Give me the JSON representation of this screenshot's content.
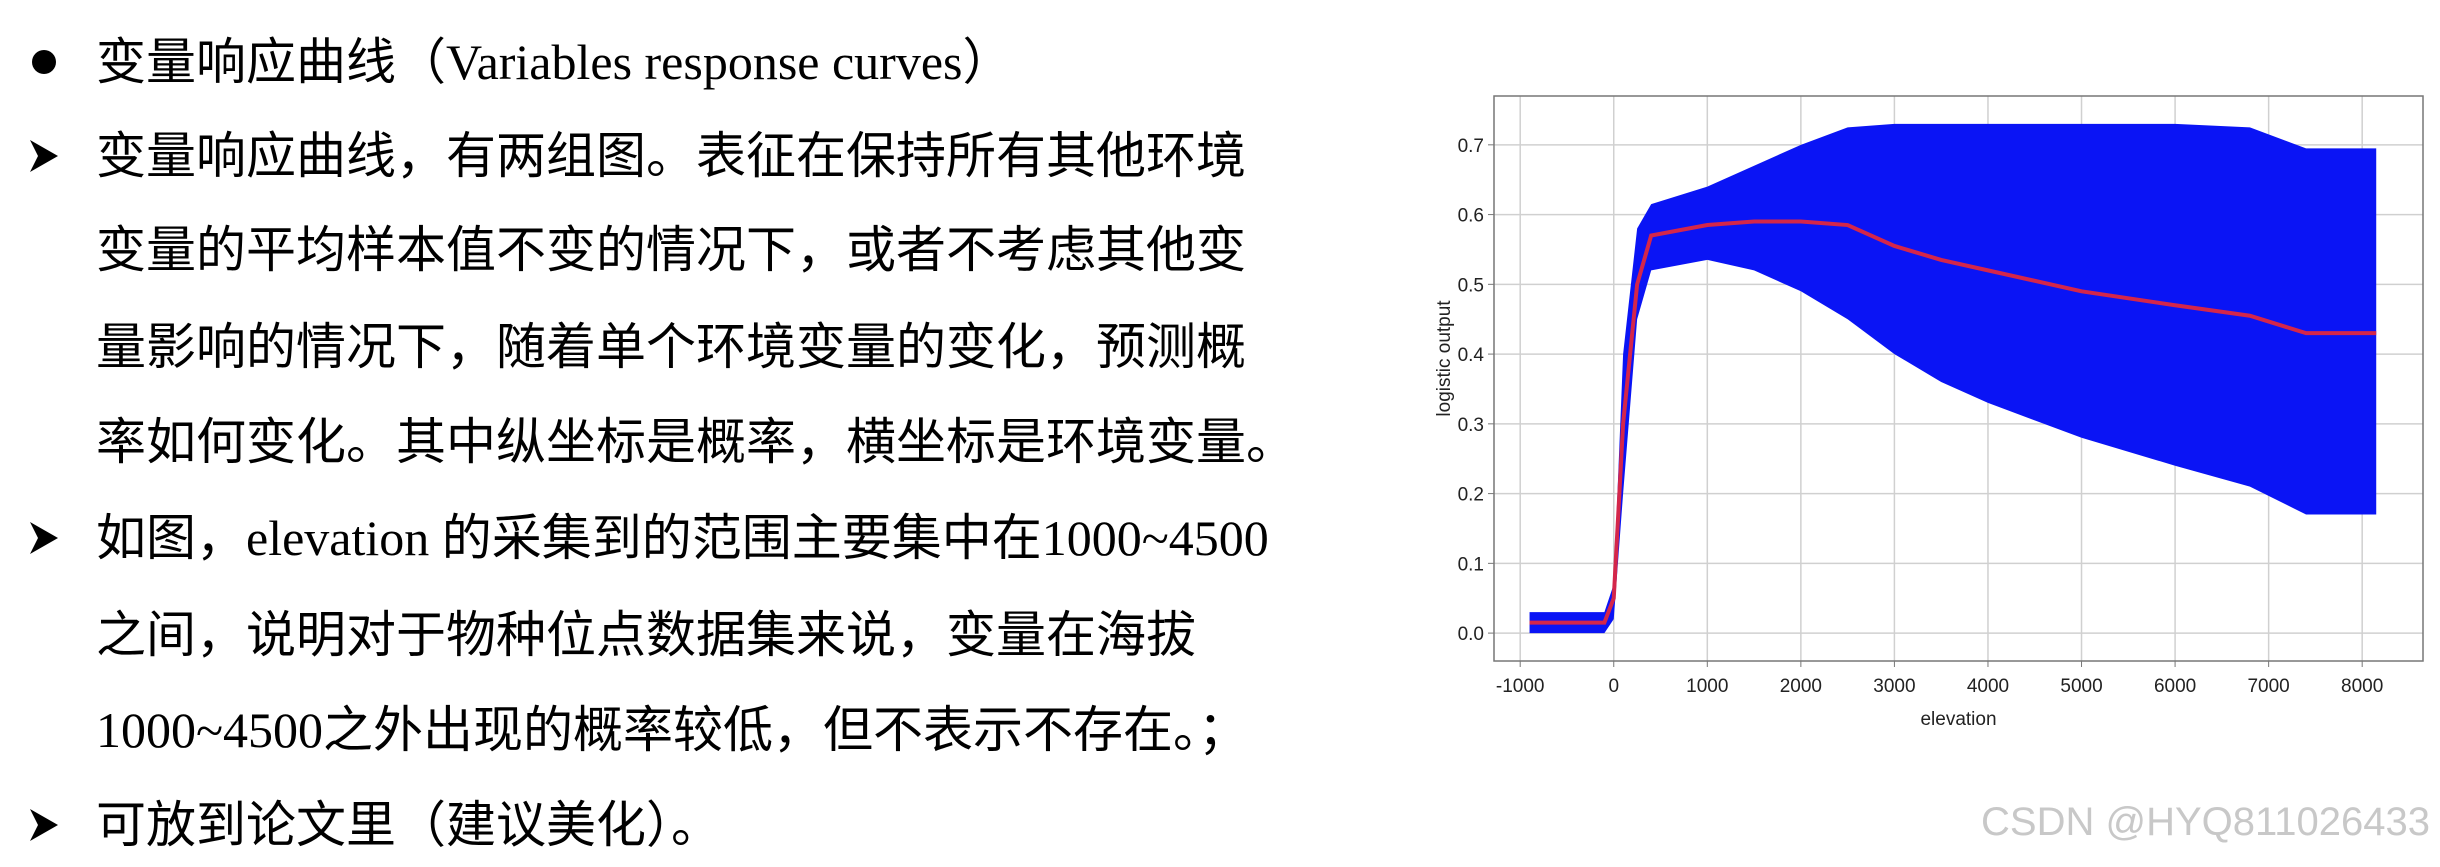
{
  "items": [
    {
      "lines": [
        "变量响应曲线（Variables response curves）"
      ]
    },
    {
      "lines": [
        "变量响应曲线，有两组图。表征在保持所有其他环境",
        "变量的平均样本值不变的情况下，或者不考虑其他变",
        "量影响的情况下，随着单个环境变量的变化，预测概",
        "率如何变化。其中纵坐标是概率，横坐标是环境变量。"
      ]
    },
    {
      "lines": [
        "如图，elevation 的采集到的范围主要集中在1000~4500",
        "之间，说明对于物种位点数据集来说，变量在海拔",
        "1000~4500之外出现的概率较低，但不表示不存在。；"
      ]
    },
    {
      "lines": [
        "可放到论文里（建议美化）。"
      ]
    }
  ],
  "chart_data": {
    "type": "line",
    "x_label": "elevation",
    "y_label": "logistic output",
    "x": [
      -900,
      -100,
      0,
      100,
      250,
      400,
      1000,
      1500,
      2000,
      2500,
      3000,
      3500,
      4000,
      5000,
      6000,
      6800,
      7400,
      8150
    ],
    "band": {
      "color": "#0a14f5",
      "upper": [
        0.03,
        0.03,
        0.07,
        0.4,
        0.58,
        0.615,
        0.64,
        0.67,
        0.7,
        0.725,
        0.73,
        0.73,
        0.73,
        0.73,
        0.73,
        0.725,
        0.695,
        0.695
      ],
      "lower": [
        0,
        0,
        0.02,
        0.2,
        0.45,
        0.52,
        0.535,
        0.52,
        0.49,
        0.45,
        0.4,
        0.36,
        0.33,
        0.28,
        0.24,
        0.21,
        0.17,
        0.17
      ]
    },
    "series": [
      {
        "color": "#d4264a",
        "values": [
          0.015,
          0.015,
          0.05,
          0.3,
          0.5,
          0.57,
          0.585,
          0.59,
          0.59,
          0.585,
          0.555,
          0.535,
          0.52,
          0.49,
          0.47,
          0.455,
          0.43,
          0.43
        ]
      }
    ],
    "xlim": [
      -1280,
      8650
    ],
    "ylim": [
      -0.04,
      0.77
    ],
    "xticks": [
      -1000,
      0,
      1000,
      2000,
      3000,
      4000,
      5000,
      6000,
      7000,
      8000
    ],
    "yticks": [
      {
        "value": 0,
        "label": "0.0"
      },
      0.1,
      0.2,
      0.3,
      0.4,
      0.5,
      0.6,
      0.7
    ],
    "grid": true
  },
  "watermark": "CSDN @HYQ811026433"
}
